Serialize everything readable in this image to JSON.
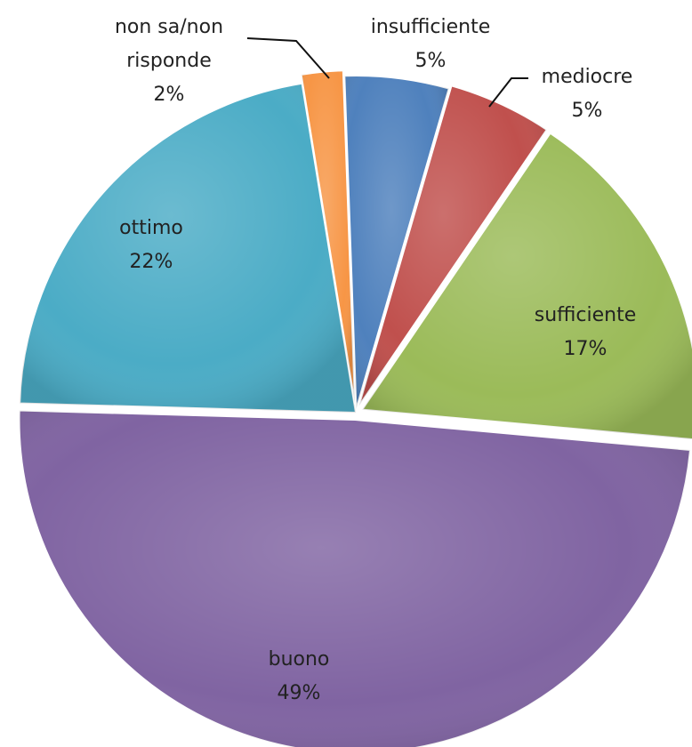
{
  "chart_data": {
    "type": "pie",
    "title": "",
    "legend": "none",
    "slices": [
      {
        "name": "insufficiente",
        "value": 5,
        "label": "5%",
        "color": "#4F81BD"
      },
      {
        "name": "mediocre",
        "value": 5,
        "label": "5%",
        "color": "#C0504D"
      },
      {
        "name": "sufficiente",
        "value": 17,
        "label": "17%",
        "color": "#9BBB59"
      },
      {
        "name": "buono",
        "value": 49,
        "label": "49%",
        "color": "#8064A2"
      },
      {
        "name": "ottimo",
        "value": 22,
        "label": "22%",
        "color": "#4BACC6"
      },
      {
        "name": "non sa/non risponde",
        "value": 2,
        "label": "2%",
        "color": "#F79646"
      }
    ]
  }
}
